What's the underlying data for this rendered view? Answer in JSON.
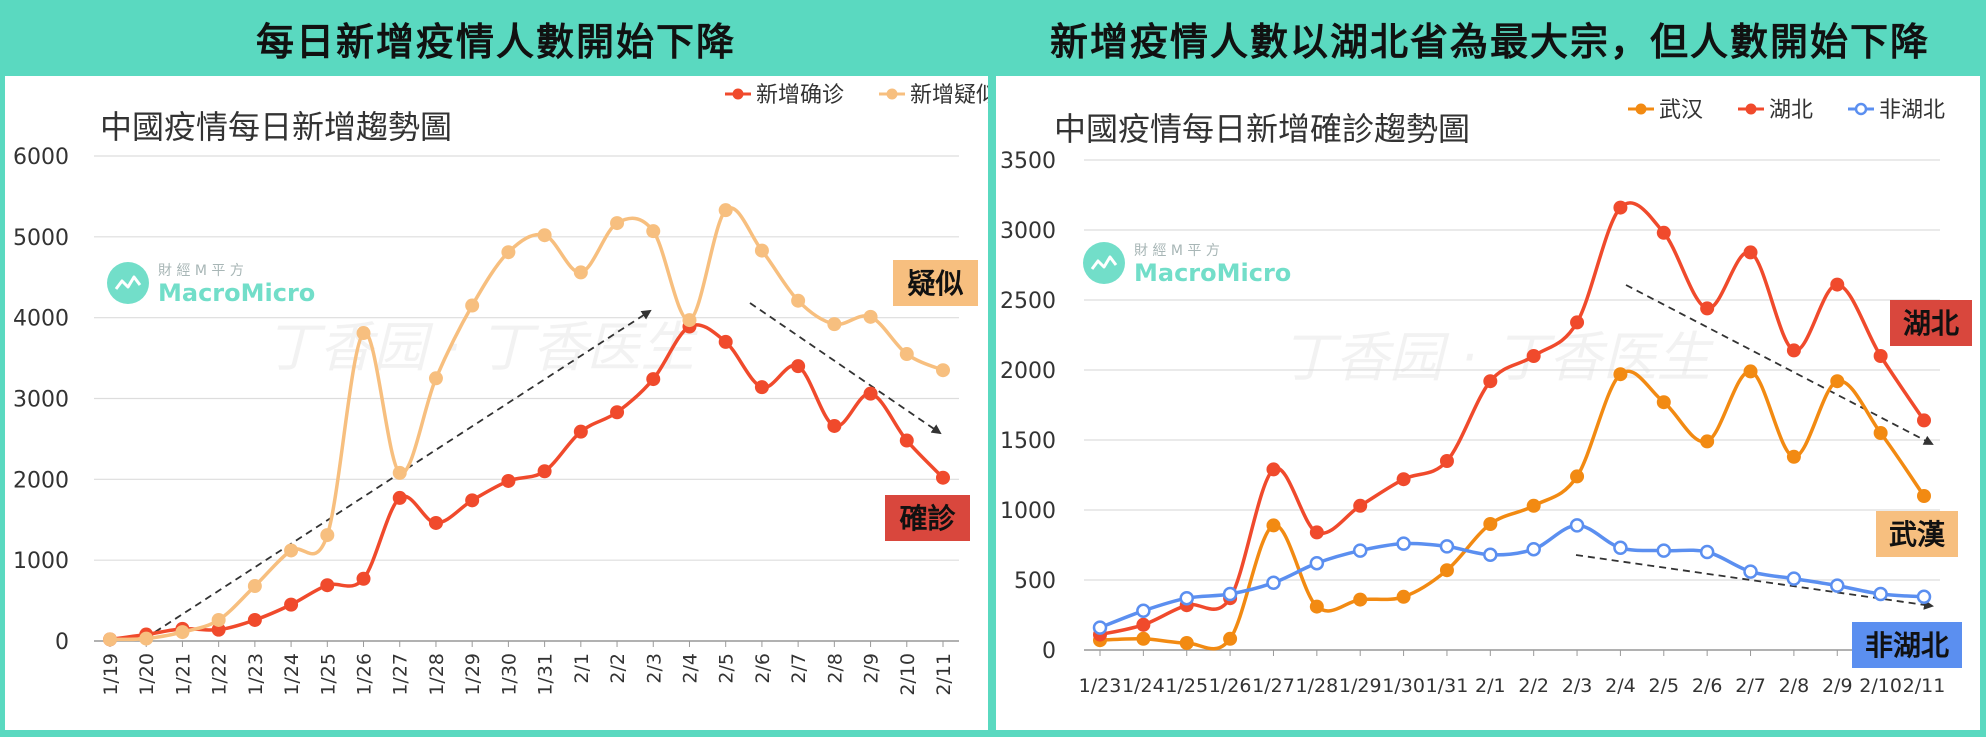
{
  "headers": {
    "left": "每日新增疫情人數開始下降",
    "right": "新增疫情人數以湖北省為最大宗，但人數開始下降"
  },
  "watermark": {
    "brand_cn": "財 經 M 平 方",
    "brand_en": "MacroMicro",
    "bg_text": "丁香园 · 丁香医生"
  },
  "colors": {
    "confirmed": "#f04a2c",
    "suspected": "#f7bf7f",
    "wuhan": "#f28a12",
    "hubei": "#f04a2c",
    "non_hubei": "#5b8ff0",
    "frame": "#5ad9c0"
  },
  "chart_data": [
    {
      "type": "line",
      "title": "中國疫情每日新增趨勢圖",
      "legend_position": "top-right",
      "categories": [
        "1/19",
        "1/20",
        "1/21",
        "1/22",
        "1/23",
        "1/24",
        "1/25",
        "1/26",
        "1/27",
        "1/28",
        "1/29",
        "1/30",
        "1/31",
        "2/1",
        "2/2",
        "2/3",
        "2/4",
        "2/5",
        "2/6",
        "2/7",
        "2/8",
        "2/9",
        "2/10",
        "2/11"
      ],
      "ylim": [
        0,
        6000
      ],
      "yticks": [
        0,
        1000,
        2000,
        3000,
        4000,
        5000,
        6000
      ],
      "grid": true,
      "series": [
        {
          "name": "新增确诊",
          "color": "#f04a2c",
          "values": [
            20,
            80,
            150,
            140,
            260,
            450,
            690,
            770,
            1770,
            1460,
            1740,
            1980,
            2100,
            2590,
            2830,
            3240,
            3890,
            3700,
            3140,
            3400,
            2660,
            3060,
            2480,
            2020
          ]
        },
        {
          "name": "新增疑似",
          "color": "#f7bf7f",
          "values": [
            20,
            30,
            110,
            260,
            680,
            1120,
            1310,
            3810,
            2080,
            3250,
            4150,
            4810,
            5020,
            4560,
            5170,
            5070,
            3970,
            5330,
            4830,
            4210,
            3920,
            4010,
            3550,
            3350
          ]
        }
      ],
      "annotations": [
        {
          "text": "疑似",
          "series": "新增疑似",
          "fill": "#f7bf7f"
        },
        {
          "text": "確診",
          "series": "新增确诊",
          "fill": "#d9473d"
        }
      ]
    },
    {
      "type": "line",
      "title": "中國疫情每日新增確診趨勢圖",
      "legend_position": "top-right",
      "categories": [
        "1/23",
        "1/24",
        "1/25",
        "1/26",
        "1/27",
        "1/28",
        "1/29",
        "1/30",
        "1/31",
        "2/1",
        "2/2",
        "2/3",
        "2/4",
        "2/5",
        "2/6",
        "2/7",
        "2/8",
        "2/9",
        "2/10",
        "2/11"
      ],
      "ylim": [
        0,
        3500
      ],
      "yticks": [
        0,
        500,
        1000,
        1500,
        2000,
        2500,
        3000,
        3500
      ],
      "grid": true,
      "series": [
        {
          "name": "武汉",
          "color": "#f28a12",
          "values": [
            70,
            80,
            50,
            80,
            890,
            310,
            360,
            380,
            570,
            900,
            1030,
            1240,
            1970,
            1770,
            1490,
            1990,
            1380,
            1920,
            1550,
            1100
          ]
        },
        {
          "name": "湖北",
          "color": "#f04a2c",
          "values": [
            110,
            180,
            320,
            370,
            1290,
            840,
            1030,
            1220,
            1350,
            1920,
            2100,
            2340,
            3160,
            2980,
            2440,
            2840,
            2140,
            2610,
            2100,
            1640
          ]
        },
        {
          "name": "非湖北",
          "color": "#5b8ff0",
          "values": [
            160,
            280,
            370,
            400,
            480,
            620,
            710,
            760,
            740,
            680,
            720,
            890,
            730,
            710,
            700,
            560,
            510,
            460,
            400,
            380
          ]
        }
      ],
      "annotations": [
        {
          "text": "湖北",
          "series": "湖北",
          "fill": "#d9473d"
        },
        {
          "text": "武漢",
          "series": "武汉",
          "fill": "#f7bf7f"
        },
        {
          "text": "非湖北",
          "series": "非湖北",
          "fill": "#5b8ff0"
        }
      ]
    }
  ]
}
